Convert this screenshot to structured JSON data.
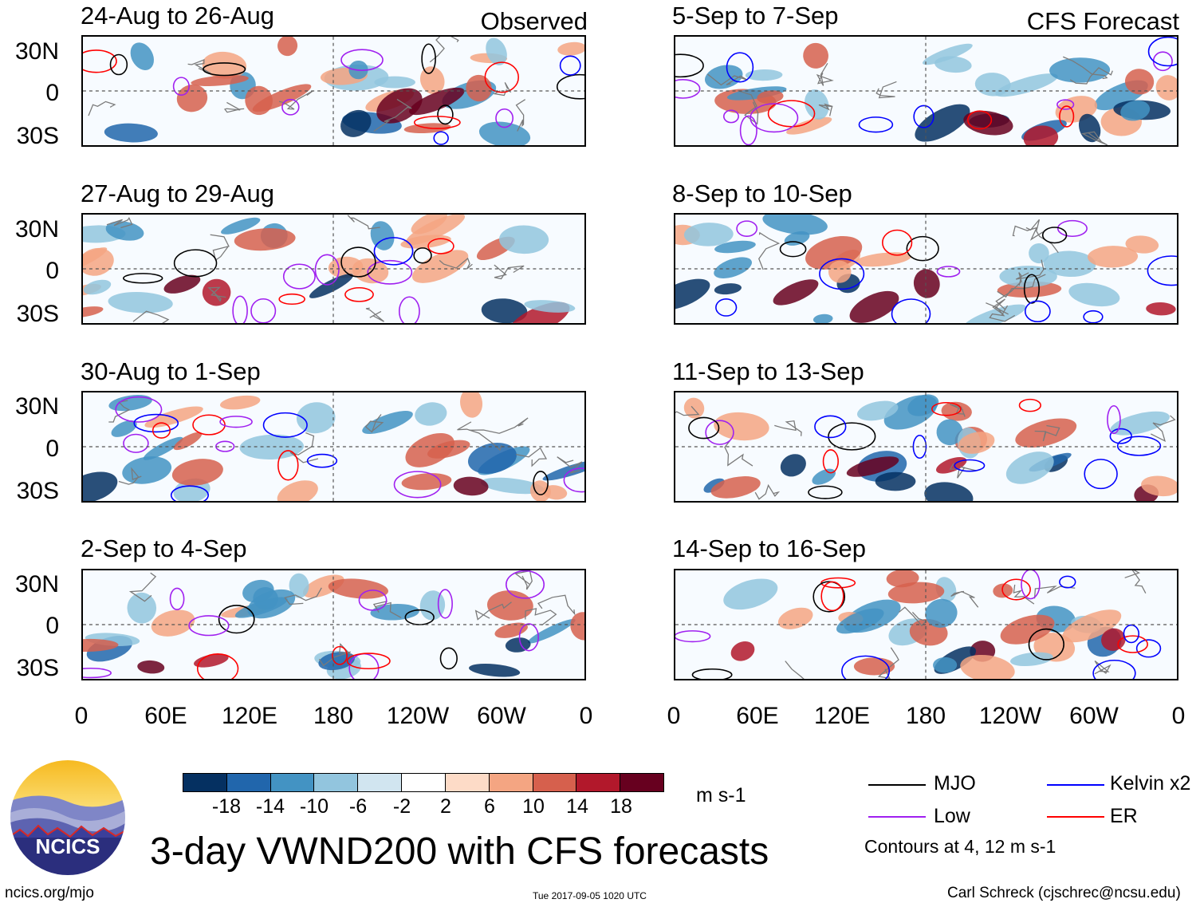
{
  "header": {
    "observed_label": "Observed",
    "forecast_label": "CFS Forecast"
  },
  "panels_left": [
    {
      "title": "24-Aug to 26-Aug"
    },
    {
      "title": "27-Aug to 29-Aug"
    },
    {
      "title": "30-Aug to 1-Sep"
    },
    {
      "title": "2-Sep to 4-Sep"
    }
  ],
  "panels_right": [
    {
      "title": "5-Sep to 7-Sep"
    },
    {
      "title": "8-Sep to 10-Sep"
    },
    {
      "title": "11-Sep to 13-Sep"
    },
    {
      "title": "14-Sep to 16-Sep"
    }
  ],
  "axes": {
    "lat_ticks": [
      "30N",
      "0",
      "30S"
    ],
    "lon_ticks": [
      "0",
      "60E",
      "120E",
      "180",
      "120W",
      "60W",
      "0"
    ]
  },
  "colorbar": {
    "labels": [
      "-18",
      "-14",
      "-10",
      "-6",
      "-2",
      "2",
      "6",
      "10",
      "14",
      "18"
    ],
    "colors": [
      "#053061",
      "#2166ac",
      "#4393c3",
      "#92c5de",
      "#d1e5f0",
      "#ffffff",
      "#fddbc7",
      "#f4a582",
      "#d6604d",
      "#b2182b",
      "#67001f"
    ],
    "units": "m s-1"
  },
  "legend": {
    "mjo": {
      "label": "MJO",
      "color": "#000000"
    },
    "kelvin": {
      "label": "Kelvin x2",
      "color": "#0000ff"
    },
    "low": {
      "label": "Low",
      "color": "#a020f0"
    },
    "er": {
      "label": "ER",
      "color": "#ff0000"
    },
    "note": "Contours at 4, 12 m s-1"
  },
  "title": "3-day VWND200 with CFS forecasts",
  "logo_text": "NCICS",
  "footer": {
    "url": "ncics.org/mjo",
    "timestamp": "Tue 2017-09-05 1020 UTC",
    "author": "Carl Schreck (cjschrec@ncsu.edu)"
  }
}
